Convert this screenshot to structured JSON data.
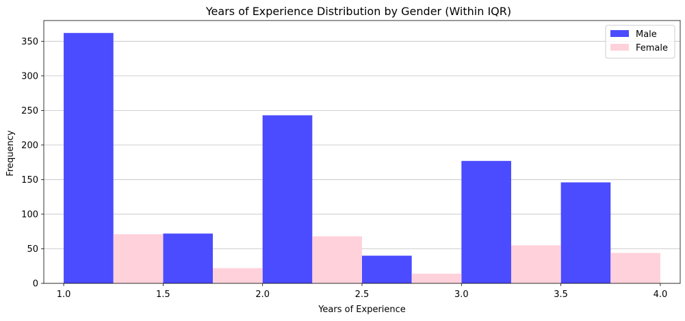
{
  "chart_data": {
    "type": "bar",
    "title": "Years of Experience Distribution by Gender (Within IQR)",
    "xlabel": "Years of Experience",
    "ylabel": "Frequency",
    "xlim": [
      0.9,
      4.1
    ],
    "ylim": [
      0,
      380
    ],
    "xticks": [
      "1.0",
      "1.5",
      "2.0",
      "2.5",
      "3.0",
      "3.5",
      "4.0"
    ],
    "yticks": [
      "0",
      "50",
      "100",
      "150",
      "200",
      "250",
      "300",
      "350"
    ],
    "grid": "y",
    "legend_position": "top-right",
    "bin_edges": [
      1.0,
      1.5,
      2.0,
      2.5,
      3.0,
      3.5,
      4.0
    ],
    "series": [
      {
        "name": "Male",
        "color": "#4b4bff",
        "values": [
          362,
          72,
          243,
          40,
          177,
          146
        ]
      },
      {
        "name": "Female",
        "color": "#ffd1da",
        "values": [
          71,
          22,
          68,
          14,
          55,
          44
        ]
      }
    ]
  }
}
